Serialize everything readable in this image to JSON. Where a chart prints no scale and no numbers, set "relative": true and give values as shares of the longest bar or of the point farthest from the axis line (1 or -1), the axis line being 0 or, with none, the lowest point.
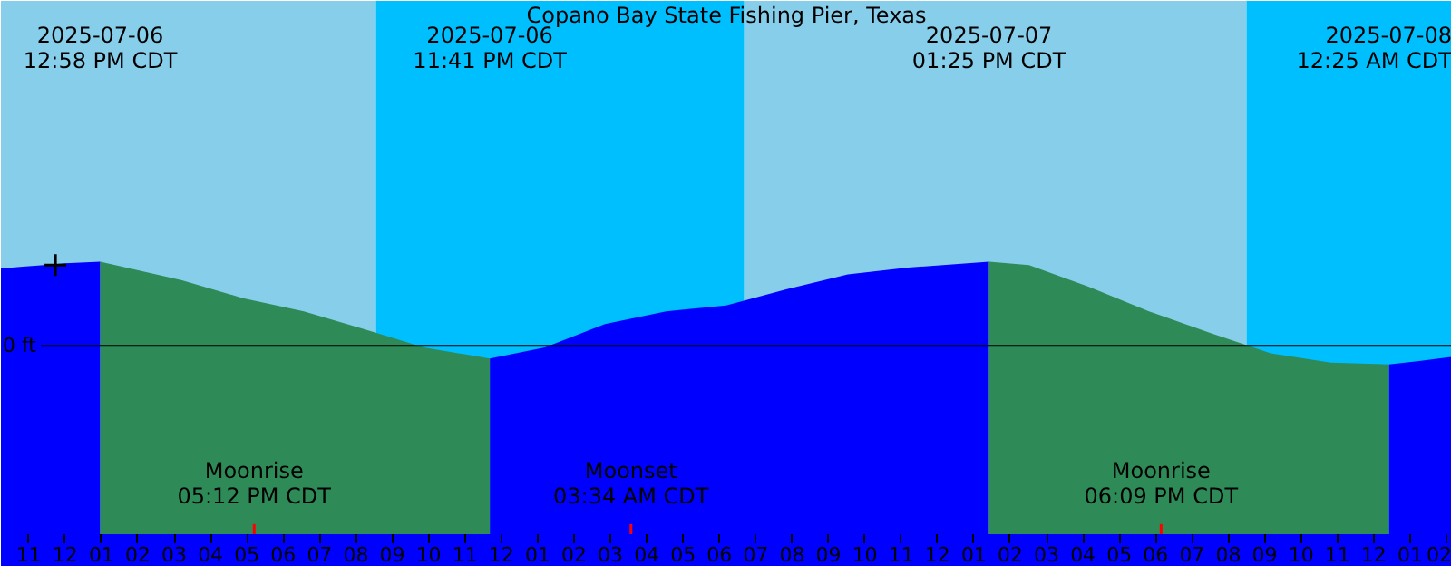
{
  "chart_data": {
    "type": "area",
    "title": "Copano Bay State Fishing Pier, Texas",
    "relative": true,
    "xlim": [
      "2025-07-06T10:14",
      "2025-07-08T02:09"
    ],
    "xticks": [
      {
        "value": "2025-07-06T11:00",
        "label": "11"
      },
      {
        "value": "2025-07-06T12:00",
        "label": "12"
      },
      {
        "value": "2025-07-06T13:00",
        "label": "01"
      },
      {
        "value": "2025-07-06T14:00",
        "label": "02"
      },
      {
        "value": "2025-07-06T15:00",
        "label": "03"
      },
      {
        "value": "2025-07-06T16:00",
        "label": "04"
      },
      {
        "value": "2025-07-06T17:00",
        "label": "05"
      },
      {
        "value": "2025-07-06T18:00",
        "label": "06"
      },
      {
        "value": "2025-07-06T19:00",
        "label": "07"
      },
      {
        "value": "2025-07-06T20:00",
        "label": "08"
      },
      {
        "value": "2025-07-06T21:00",
        "label": "09"
      },
      {
        "value": "2025-07-06T22:00",
        "label": "10"
      },
      {
        "value": "2025-07-06T23:00",
        "label": "11"
      },
      {
        "value": "2025-07-07T00:00",
        "label": "12"
      },
      {
        "value": "2025-07-07T01:00",
        "label": "01"
      },
      {
        "value": "2025-07-07T02:00",
        "label": "02"
      },
      {
        "value": "2025-07-07T03:00",
        "label": "03"
      },
      {
        "value": "2025-07-07T04:00",
        "label": "04"
      },
      {
        "value": "2025-07-07T05:00",
        "label": "05"
      },
      {
        "value": "2025-07-07T06:00",
        "label": "06"
      },
      {
        "value": "2025-07-07T07:00",
        "label": "07"
      },
      {
        "value": "2025-07-07T08:00",
        "label": "08"
      },
      {
        "value": "2025-07-07T09:00",
        "label": "09"
      },
      {
        "value": "2025-07-07T10:00",
        "label": "10"
      },
      {
        "value": "2025-07-07T11:00",
        "label": "11"
      },
      {
        "value": "2025-07-07T12:00",
        "label": "12"
      },
      {
        "value": "2025-07-07T13:00",
        "label": "01"
      },
      {
        "value": "2025-07-07T14:00",
        "label": "02"
      },
      {
        "value": "2025-07-07T15:00",
        "label": "03"
      },
      {
        "value": "2025-07-07T16:00",
        "label": "04"
      },
      {
        "value": "2025-07-07T17:00",
        "label": "05"
      },
      {
        "value": "2025-07-07T18:00",
        "label": "06"
      },
      {
        "value": "2025-07-07T19:00",
        "label": "07"
      },
      {
        "value": "2025-07-07T20:00",
        "label": "08"
      },
      {
        "value": "2025-07-07T21:00",
        "label": "09"
      },
      {
        "value": "2025-07-07T22:00",
        "label": "10"
      },
      {
        "value": "2025-07-07T23:00",
        "label": "11"
      },
      {
        "value": "2025-07-08T00:00",
        "label": "12"
      },
      {
        "value": "2025-07-08T01:00",
        "label": "01"
      },
      {
        "value": "2025-07-08T02:00",
        "label": "02"
      }
    ],
    "series": [
      {
        "color": "#0000ff",
        "x": [
          "2025-07-06T10:14",
          "2025-07-06T10:50",
          "2025-07-06T11:25",
          "2025-07-06T12:00",
          "2025-07-06T12:58",
          "2025-07-06T18:00",
          "2025-07-06T23:41",
          "2025-07-07T01:12",
          "2025-07-07T02:51",
          "2025-07-07T04:32",
          "2025-07-07T06:11",
          "2025-07-07T07:50",
          "2025-07-07T09:32",
          "2025-07-07T11:11",
          "2025-07-07T13:25",
          "2025-07-07T18:00",
          "2025-07-08T00:25",
          "2025-07-08T01:15",
          "2025-07-08T02:09"
        ],
        "values": [
          0.92,
          0.94,
          0.96,
          0.98,
          1.0,
          null,
          -0.15,
          -0.02,
          0.26,
          0.41,
          0.48,
          0.67,
          0.85,
          0.93,
          1.0,
          null,
          -0.22,
          -0.18,
          -0.13
        ]
      },
      {
        "color": "#2e8b57",
        "x": [
          "2025-07-06T12:58",
          "2025-07-06T15:13",
          "2025-07-06T16:52",
          "2025-07-06T18:34",
          "2025-07-06T20:13",
          "2025-07-06T21:52",
          "2025-07-06T23:41",
          "2025-07-07T06:00",
          "2025-07-07T13:25",
          "2025-07-07T14:31",
          "2025-07-07T16:10",
          "2025-07-07T17:49",
          "2025-07-07T19:31",
          "2025-07-07T21:10",
          "2025-07-07T22:49",
          "2025-07-08T00:25"
        ],
        "values": [
          1.0,
          0.78,
          0.57,
          0.41,
          0.2,
          -0.02,
          -0.15,
          null,
          1.0,
          0.96,
          0.7,
          0.41,
          0.15,
          -0.09,
          -0.2,
          -0.22
        ]
      },
      {
        "type": "scatter",
        "marker": "cross",
        "color": "#000000",
        "x": [
          "2025-07-06T11:44"
        ],
        "values": [
          0.96
        ]
      }
    ],
    "bands": [
      {
        "axis": "x",
        "from": "2025-07-06T10:14",
        "to": "2025-07-06T20:33",
        "color": "#87ceeb"
      },
      {
        "axis": "x",
        "from": "2025-07-06T20:33",
        "to": "2025-07-07T06:41",
        "color": "#00bfff"
      },
      {
        "axis": "x",
        "from": "2025-07-07T06:41",
        "to": "2025-07-07T20:30",
        "color": "#87ceeb"
      },
      {
        "axis": "x",
        "from": "2025-07-07T20:30",
        "to": "2025-07-08T02:09",
        "color": "#00bfff"
      }
    ],
    "ref_lines": [
      {
        "axis": "y",
        "value": 0,
        "label": "0 ft",
        "color": "#000000"
      },
      {
        "axis": "x",
        "value": "2025-07-06T17:12",
        "label": "Moonrise\n05:12 PM CDT",
        "color": "#ff0000"
      },
      {
        "axis": "x",
        "value": "2025-07-07T03:34",
        "label": "Moonset\n03:34 AM CDT",
        "color": "#ff0000"
      },
      {
        "axis": "x",
        "value": "2025-07-07T18:09",
        "label": "Moonrise\n06:09 PM CDT",
        "color": "#ff0000"
      }
    ],
    "annotations": [
      "2025-07-06\n12:58 PM CDT",
      "2025-07-06\n11:41 PM CDT",
      "2025-07-07\n01:25 PM CDT",
      "2025-07-08\n12:25 AM CDT"
    ]
  }
}
